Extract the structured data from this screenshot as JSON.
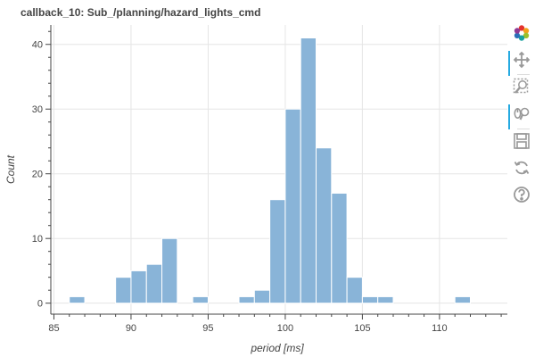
{
  "title": "callback_10: Sub_/planning/hazard_lights_cmd",
  "colors": {
    "bar_fill": "#89b4d8",
    "bar_stroke": "#ffffff",
    "grid": "#e5e5e5",
    "axis": "#444444"
  },
  "toolbar": {
    "tools": [
      {
        "name": "bokeh-logo-icon",
        "active": false
      },
      {
        "name": "pan-tool-icon",
        "active": true
      },
      {
        "name": "box-zoom-tool-icon",
        "active": false
      },
      {
        "name": "wheel-zoom-tool-icon",
        "active": true
      },
      {
        "name": "save-tool-icon",
        "active": false
      },
      {
        "name": "reset-tool-icon",
        "active": false
      },
      {
        "name": "help-tool-icon",
        "active": false
      }
    ]
  },
  "chart_data": {
    "type": "bar",
    "title": "callback_10: Sub_/planning/hazard_lights_cmd",
    "xlabel": "period [ms]",
    "ylabel": "Count",
    "xlim": [
      84.8,
      114.4
    ],
    "ylim": [
      -1.7,
      43
    ],
    "x_ticks": [
      85,
      90,
      95,
      100,
      105,
      110
    ],
    "y_ticks": [
      0,
      10,
      20,
      30,
      40
    ],
    "grid": true,
    "bin_width": 1,
    "bins": [
      {
        "x0": 86,
        "count": 1
      },
      {
        "x0": 89,
        "count": 4
      },
      {
        "x0": 90,
        "count": 5
      },
      {
        "x0": 91,
        "count": 6
      },
      {
        "x0": 92,
        "count": 10
      },
      {
        "x0": 94,
        "count": 1
      },
      {
        "x0": 97,
        "count": 1
      },
      {
        "x0": 98,
        "count": 2
      },
      {
        "x0": 99,
        "count": 16
      },
      {
        "x0": 100,
        "count": 30
      },
      {
        "x0": 101,
        "count": 41
      },
      {
        "x0": 102,
        "count": 24
      },
      {
        "x0": 103,
        "count": 17
      },
      {
        "x0": 104,
        "count": 4
      },
      {
        "x0": 105,
        "count": 1
      },
      {
        "x0": 106,
        "count": 1
      },
      {
        "x0": 111,
        "count": 1
      }
    ]
  }
}
